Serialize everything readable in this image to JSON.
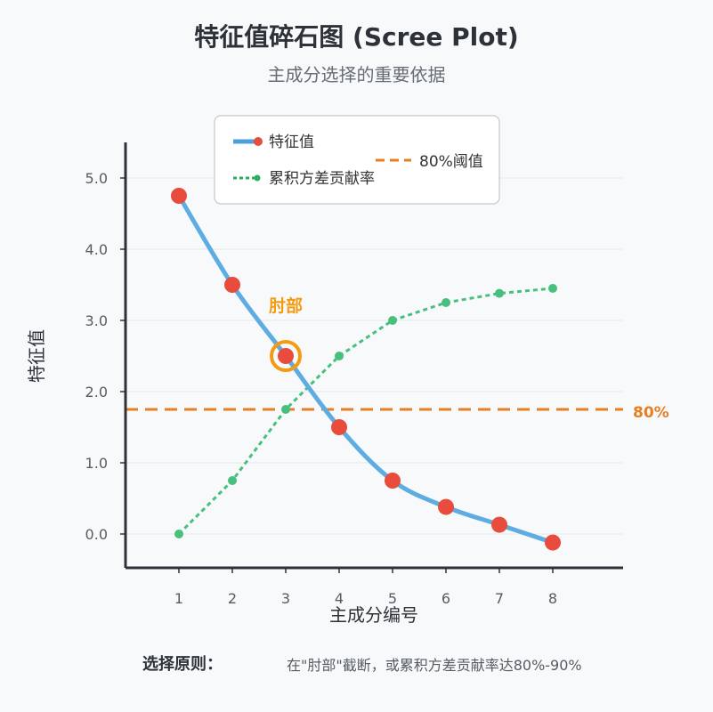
{
  "chart_data": {
    "type": "line",
    "title": "特征值碎石图 (Scree Plot)",
    "subtitle": "主成分选择的重要依据",
    "xlabel": "主成分编号",
    "ylabel": "特征值",
    "categories": [
      1,
      2,
      3,
      4,
      5,
      6,
      7,
      8
    ],
    "xtick_labels": [
      "1",
      "2",
      "3",
      "4",
      "5",
      "6",
      "7",
      "8"
    ],
    "ylim": [
      -0.45,
      5.5
    ],
    "yticks": [
      0.0,
      1.0,
      2.0,
      3.0,
      4.0,
      5.0
    ],
    "ytick_labels": [
      "0.0",
      "1.0",
      "2.0",
      "3.0",
      "4.0",
      "5.0"
    ],
    "grid": true,
    "series": [
      {
        "name": "特征值",
        "style": "solid-line-markers",
        "color": "#5dade2",
        "marker_color": "#e74c3c",
        "values": [
          4.75,
          3.5,
          2.5,
          1.5,
          0.75,
          0.38,
          0.13,
          -0.12
        ]
      },
      {
        "name": "累积方差贡献率",
        "style": "dotted-line-markers",
        "color": "#48c07d",
        "values": [
          0.0,
          0.75,
          1.75,
          2.5,
          3.0,
          3.25,
          3.38,
          3.45
        ]
      }
    ],
    "threshold": {
      "name": "80%阈值",
      "label": "80%",
      "value": 1.75,
      "color": "#e67e22"
    },
    "annotation": {
      "text": "肘部",
      "x": 3,
      "y": 2.5,
      "color": "#f39c12"
    },
    "legend": {
      "position": "top-center",
      "entries": [
        "特征值",
        "累积方差贡献率",
        "80%阈值"
      ]
    }
  },
  "footer": {
    "label": "选择原则：",
    "text": "在\"肘部\"截断，或累积方差贡献率达80%-90%"
  }
}
